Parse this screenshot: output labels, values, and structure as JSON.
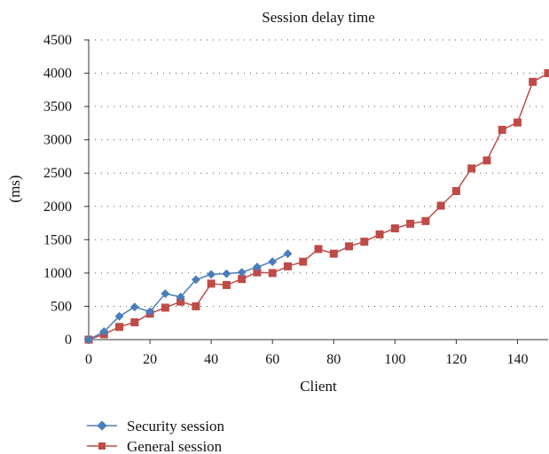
{
  "chart_data": {
    "type": "line",
    "title": "Session delay time",
    "xlabel": "Client",
    "ylabel": "(ms)",
    "xlim": [
      0,
      150
    ],
    "ylim": [
      0,
      4500
    ],
    "xticks": [
      0,
      20,
      40,
      60,
      80,
      100,
      120,
      140
    ],
    "yticks": [
      0,
      500,
      1000,
      1500,
      2000,
      2500,
      3000,
      3500,
      4000,
      4500
    ],
    "grid": "horizontal dotted",
    "legend_position": "bottom-left",
    "series": [
      {
        "name": "Security session",
        "color": "#4a7ebb",
        "marker": "diamond",
        "x": [
          0,
          5,
          10,
          15,
          20,
          25,
          30,
          35,
          40,
          45,
          50,
          55,
          60,
          65
        ],
        "y": [
          0,
          120,
          350,
          490,
          420,
          690,
          640,
          900,
          980,
          990,
          1010,
          1090,
          1170,
          1290
        ]
      },
      {
        "name": "General session",
        "color": "#be4b48",
        "marker": "square",
        "x": [
          0,
          5,
          10,
          15,
          20,
          25,
          30,
          35,
          40,
          45,
          50,
          55,
          60,
          65,
          70,
          75,
          80,
          85,
          90,
          95,
          100,
          105,
          110,
          115,
          120,
          125,
          130,
          135,
          140,
          145,
          150
        ],
        "y": [
          0,
          80,
          190,
          260,
          390,
          480,
          570,
          500,
          840,
          820,
          910,
          1010,
          1000,
          1100,
          1170,
          1360,
          1290,
          1400,
          1470,
          1580,
          1670,
          1740,
          1780,
          2010,
          2230,
          2570,
          2690,
          3150,
          3260,
          3870,
          4000
        ]
      }
    ]
  }
}
